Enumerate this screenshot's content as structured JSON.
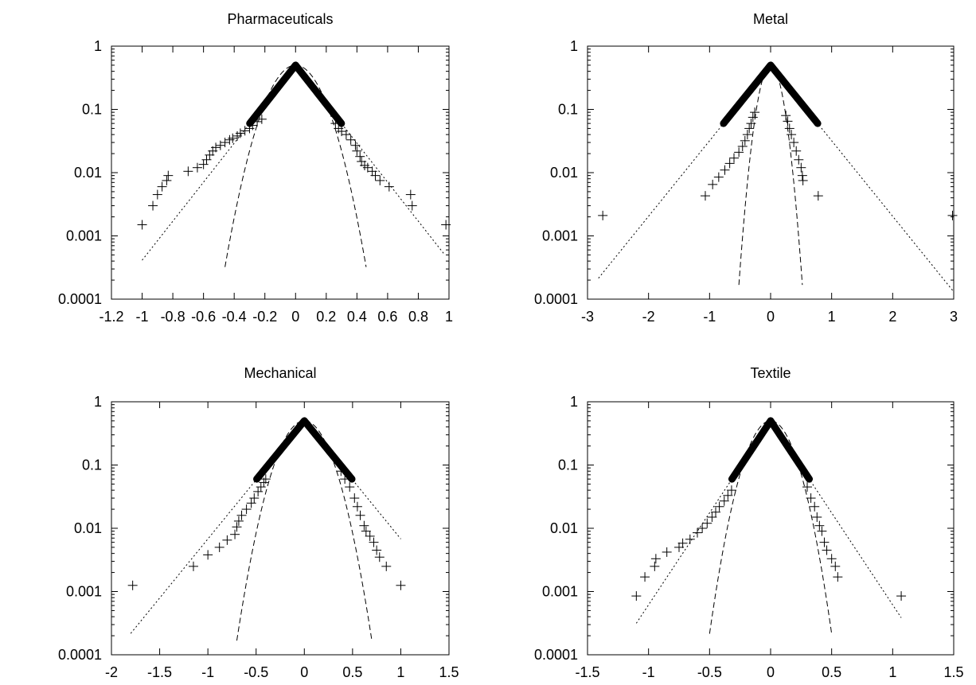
{
  "chart_data": [
    {
      "type": "scatter",
      "title": "Pharmaceuticals",
      "xlabel": "",
      "ylabel": "",
      "xlim": [
        -1.2,
        1.0
      ],
      "ylim": [
        0.0001,
        1
      ],
      "y_scale": "log",
      "grid": false,
      "xticks": [
        -1.2,
        -1,
        -0.8,
        -0.6,
        -0.4,
        -0.2,
        0,
        0.2,
        0.4,
        0.6,
        0.8,
        1
      ],
      "xtick_labels": [
        "-1.2",
        "-1",
        "-0.8",
        "-0.6",
        "-0.4",
        "-0.2",
        "0",
        "0.2",
        "0.4",
        "0.6",
        "0.8",
        "1"
      ],
      "yticks": [
        0.0001,
        0.001,
        0.01,
        0.1,
        1
      ],
      "ytick_labels": [
        "0.0001",
        "0.001",
        "0.01",
        "0.1",
        "1"
      ],
      "series": [
        {
          "style": "plus-markers",
          "points": [
            [
              -1.0,
              0.0015
            ],
            [
              -0.93,
              0.003
            ],
            [
              -0.9,
              0.0045
            ],
            [
              -0.87,
              0.006
            ],
            [
              -0.84,
              0.0075
            ],
            [
              -0.83,
              0.009
            ],
            [
              -0.7,
              0.0105
            ],
            [
              -0.64,
              0.012
            ],
            [
              -0.6,
              0.0135
            ],
            [
              -0.58,
              0.016
            ],
            [
              -0.56,
              0.019
            ],
            [
              -0.54,
              0.022
            ],
            [
              -0.52,
              0.025
            ],
            [
              -0.49,
              0.027
            ],
            [
              -0.46,
              0.03
            ],
            [
              -0.43,
              0.033
            ],
            [
              -0.41,
              0.035
            ],
            [
              -0.38,
              0.038
            ],
            [
              -0.36,
              0.042
            ],
            [
              -0.33,
              0.046
            ],
            [
              -0.3,
              0.05
            ],
            [
              -0.28,
              0.056
            ],
            [
              -0.25,
              0.064
            ],
            [
              -0.22,
              0.07
            ],
            [
              0.26,
              0.06
            ],
            [
              0.28,
              0.05
            ],
            [
              0.3,
              0.045
            ],
            [
              0.33,
              0.04
            ],
            [
              0.36,
              0.033
            ],
            [
              0.39,
              0.027
            ],
            [
              0.4,
              0.022
            ],
            [
              0.42,
              0.018
            ],
            [
              0.43,
              0.015
            ],
            [
              0.45,
              0.013
            ],
            [
              0.47,
              0.012
            ],
            [
              0.5,
              0.0105
            ],
            [
              0.52,
              0.009
            ],
            [
              0.55,
              0.0075
            ],
            [
              0.61,
              0.006
            ],
            [
              0.75,
              0.0045
            ],
            [
              0.76,
              0.003
            ],
            [
              0.98,
              0.0015
            ]
          ]
        },
        {
          "style": "dotted-line",
          "curve": "laplace",
          "peak": 0.5,
          "decay": 7.1,
          "x_range": [
            -1.0,
            0.97
          ]
        },
        {
          "style": "dashed-line",
          "curve": "gaussian",
          "peak": 0.5,
          "sigma": 0.12,
          "x_range": [
            -0.46,
            0.46
          ]
        }
      ]
    },
    {
      "type": "scatter",
      "title": "Metal",
      "xlabel": "",
      "ylabel": "",
      "xlim": [
        -3,
        3
      ],
      "ylim": [
        0.0001,
        1
      ],
      "y_scale": "log",
      "grid": false,
      "xticks": [
        -3,
        -2,
        -1,
        0,
        1,
        2,
        3
      ],
      "xtick_labels": [
        "-3",
        "-2",
        "-1",
        "0",
        "1",
        "2",
        "3"
      ],
      "yticks": [
        0.0001,
        0.001,
        0.01,
        0.1,
        1
      ],
      "ytick_labels": [
        "0.0001",
        "0.001",
        "0.01",
        "0.1",
        "1"
      ],
      "series": [
        {
          "style": "plus-markers",
          "points": [
            [
              -2.75,
              0.0021
            ],
            [
              -1.07,
              0.0043
            ],
            [
              -0.95,
              0.0065
            ],
            [
              -0.85,
              0.0085
            ],
            [
              -0.75,
              0.011
            ],
            [
              -0.67,
              0.014
            ],
            [
              -0.6,
              0.017
            ],
            [
              -0.52,
              0.021
            ],
            [
              -0.46,
              0.026
            ],
            [
              -0.42,
              0.032
            ],
            [
              -0.38,
              0.04
            ],
            [
              -0.35,
              0.05
            ],
            [
              -0.32,
              0.06
            ],
            [
              -0.29,
              0.075
            ],
            [
              -0.26,
              0.09
            ],
            [
              0.25,
              0.08
            ],
            [
              0.28,
              0.065
            ],
            [
              0.31,
              0.05
            ],
            [
              0.34,
              0.04
            ],
            [
              0.38,
              0.03
            ],
            [
              0.42,
              0.022
            ],
            [
              0.46,
              0.016
            ],
            [
              0.5,
              0.012
            ],
            [
              0.52,
              0.009
            ],
            [
              0.53,
              0.0075
            ],
            [
              0.78,
              0.0043
            ],
            [
              2.98,
              0.0021
            ]
          ]
        },
        {
          "style": "dotted-line",
          "curve": "laplace",
          "peak": 0.5,
          "decay": 2.75,
          "x_range": [
            -2.82,
            3.0
          ]
        },
        {
          "style": "dashed-line",
          "curve": "gaussian",
          "peak": 0.5,
          "sigma": 0.13,
          "x_range": [
            -0.52,
            0.52
          ]
        }
      ]
    },
    {
      "type": "scatter",
      "title": "Mechanical",
      "xlabel": "",
      "ylabel": "",
      "xlim": [
        -2,
        1.5
      ],
      "ylim": [
        0.0001,
        1
      ],
      "y_scale": "log",
      "grid": false,
      "xticks": [
        -2,
        -1.5,
        -1,
        -0.5,
        0,
        0.5,
        1,
        1.5
      ],
      "xtick_labels": [
        "-2",
        "-1.5",
        "-1",
        "-0.5",
        "0",
        "0.5",
        "1",
        "1.5"
      ],
      "yticks": [
        0.0001,
        0.001,
        0.01,
        0.1,
        1
      ],
      "ytick_labels": [
        "0.0001",
        "0.001",
        "0.01",
        "0.1",
        "1"
      ],
      "series": [
        {
          "style": "plus-markers",
          "points": [
            [
              -1.78,
              0.00125
            ],
            [
              -1.15,
              0.0025
            ],
            [
              -1.0,
              0.0038
            ],
            [
              -0.88,
              0.005
            ],
            [
              -0.8,
              0.0065
            ],
            [
              -0.72,
              0.008
            ],
            [
              -0.7,
              0.0105
            ],
            [
              -0.68,
              0.013
            ],
            [
              -0.65,
              0.016
            ],
            [
              -0.6,
              0.02
            ],
            [
              -0.55,
              0.025
            ],
            [
              -0.52,
              0.03
            ],
            [
              -0.48,
              0.038
            ],
            [
              -0.45,
              0.045
            ],
            [
              -0.42,
              0.053
            ],
            [
              -0.4,
              0.06
            ],
            [
              0.38,
              0.08
            ],
            [
              0.42,
              0.06
            ],
            [
              0.47,
              0.045
            ],
            [
              0.52,
              0.03
            ],
            [
              0.55,
              0.022
            ],
            [
              0.58,
              0.016
            ],
            [
              0.62,
              0.011
            ],
            [
              0.64,
              0.009
            ],
            [
              0.68,
              0.0075
            ],
            [
              0.72,
              0.006
            ],
            [
              0.75,
              0.0045
            ],
            [
              0.78,
              0.0035
            ],
            [
              0.85,
              0.0025
            ],
            [
              1.0,
              0.00125
            ]
          ]
        },
        {
          "style": "dotted-line",
          "curve": "laplace",
          "peak": 0.5,
          "decay": 4.3,
          "x_range": [
            -1.8,
            1.0
          ]
        },
        {
          "style": "dashed-line",
          "curve": "gaussian",
          "peak": 0.5,
          "sigma": 0.175,
          "x_range": [
            -0.7,
            0.7
          ]
        }
      ]
    },
    {
      "type": "scatter",
      "title": "Textile",
      "xlabel": "",
      "ylabel": "",
      "xlim": [
        -1.5,
        1.5
      ],
      "ylim": [
        0.0001,
        1
      ],
      "y_scale": "log",
      "grid": false,
      "xticks": [
        -1.5,
        -1,
        -0.5,
        0,
        0.5,
        1,
        1.5
      ],
      "xtick_labels": [
        "-1.5",
        "-1",
        "-0.5",
        "0",
        "0.5",
        "1",
        "1.5"
      ],
      "yticks": [
        0.0001,
        0.001,
        0.01,
        0.1,
        1
      ],
      "ytick_labels": [
        "0.0001",
        "0.001",
        "0.01",
        "0.1",
        "1"
      ],
      "series": [
        {
          "style": "plus-markers",
          "points": [
            [
              -1.1,
              0.00085
            ],
            [
              -1.03,
              0.0017
            ],
            [
              -0.95,
              0.0025
            ],
            [
              -0.94,
              0.0033
            ],
            [
              -0.85,
              0.0042
            ],
            [
              -0.75,
              0.005
            ],
            [
              -0.72,
              0.0058
            ],
            [
              -0.66,
              0.0067
            ],
            [
              -0.6,
              0.0085
            ],
            [
              -0.56,
              0.01
            ],
            [
              -0.52,
              0.012
            ],
            [
              -0.48,
              0.015
            ],
            [
              -0.45,
              0.018
            ],
            [
              -0.42,
              0.022
            ],
            [
              -0.38,
              0.027
            ],
            [
              -0.35,
              0.033
            ],
            [
              -0.32,
              0.04
            ],
            [
              0.3,
              0.045
            ],
            [
              0.33,
              0.03
            ],
            [
              0.36,
              0.022
            ],
            [
              0.38,
              0.015
            ],
            [
              0.4,
              0.011
            ],
            [
              0.42,
              0.009
            ],
            [
              0.44,
              0.006
            ],
            [
              0.46,
              0.0045
            ],
            [
              0.5,
              0.0033
            ],
            [
              0.53,
              0.0025
            ],
            [
              0.55,
              0.0017
            ],
            [
              1.07,
              0.00085
            ]
          ]
        },
        {
          "style": "dotted-line",
          "curve": "laplace",
          "peak": 0.5,
          "decay": 6.7,
          "x_range": [
            -1.1,
            1.07
          ]
        },
        {
          "style": "dashed-line",
          "curve": "gaussian",
          "peak": 0.5,
          "sigma": 0.127,
          "x_range": [
            -0.5,
            0.5
          ]
        }
      ]
    }
  ]
}
